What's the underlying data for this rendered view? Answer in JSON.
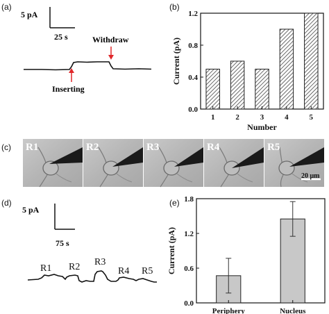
{
  "figure": {
    "panels": [
      {
        "label": "(a)"
      },
      {
        "label": "(b)"
      },
      {
        "label": "(c)"
      },
      {
        "label": "(d)"
      },
      {
        "label": "(e)"
      }
    ]
  },
  "panel_a": {
    "scale_y": "5 pA",
    "scale_x": "25 s",
    "withdraw": "Withdraw",
    "inserting": "Inserting",
    "arrow_color": "#e0282b"
  },
  "panel_c": {
    "frames": [
      "R1",
      "R2",
      "R3",
      "R4",
      "R5"
    ],
    "scale_bar": "20 μm"
  },
  "panel_d": {
    "scale_y": "5 pA",
    "scale_x": "75 s",
    "levels": [
      "R1",
      "R2",
      "R3",
      "R4",
      "R5"
    ]
  },
  "chart_data": [
    {
      "type": "bar",
      "panel": "(b)",
      "categories": [
        "1",
        "2",
        "3",
        "4",
        "5"
      ],
      "values": [
        0.5,
        0.6,
        0.5,
        1.0,
        1.2
      ],
      "xlabel": "Number",
      "ylabel": "Current (pA)",
      "ylim": [
        0.0,
        1.2
      ],
      "yticks": [
        "0.0",
        "0.4",
        "0.8",
        "1.2"
      ],
      "bar_fill": "hatched",
      "grid": false
    },
    {
      "type": "bar",
      "panel": "(e)",
      "categories": [
        "Periphery",
        "Nucleus"
      ],
      "values": [
        0.47,
        1.45
      ],
      "errors": [
        0.3,
        0.3
      ],
      "ylabel": "Current (pA)",
      "ylim": [
        0.0,
        1.8
      ],
      "yticks": [
        "0.0",
        "0.6",
        "1.2",
        "1.8"
      ],
      "bar_color": "#c8c8c8",
      "grid": false
    }
  ]
}
